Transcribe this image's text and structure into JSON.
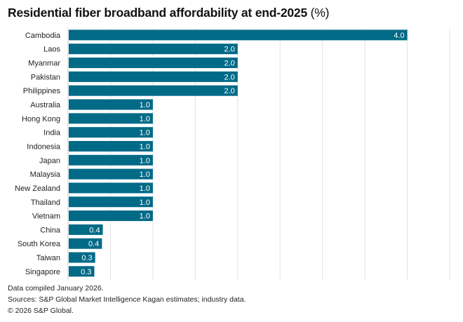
{
  "chart_data": {
    "type": "bar",
    "orientation": "horizontal",
    "title": "Residential fiber broadband affordability at end-2025",
    "title_unit": "(%)",
    "categories": [
      "Cambodia",
      "Laos",
      "Myanmar",
      "Pakistan",
      "Philippines",
      "Australia",
      "Hong Kong",
      "India",
      "Indonesia",
      "Japan",
      "Malaysia",
      "New Zealand",
      "Thailand",
      "Vietnam",
      "China",
      "South Korea",
      "Taiwan",
      "Singapore"
    ],
    "values": [
      4.0,
      2.0,
      2.0,
      2.0,
      2.0,
      1.0,
      1.0,
      1.0,
      1.0,
      1.0,
      1.0,
      1.0,
      1.0,
      1.0,
      0.41,
      0.4,
      0.32,
      0.31
    ],
    "data_labels": [
      "4.0",
      "2.0",
      "2.0",
      "2.0",
      "2.0",
      "1.0",
      "1.0",
      "1.0",
      "1.0",
      "1.0",
      "1.0",
      "1.0",
      "1.0",
      "1.0",
      "0.4",
      "0.4",
      "0.3",
      "0.3"
    ],
    "xlim": [
      0,
      4.5
    ],
    "grid": true,
    "grid_step": 0.5,
    "bar_color": "#006a87",
    "label_color": "#ffffff"
  },
  "footer": {
    "note": "Data compiled January 2026.",
    "sources": "Sources: S&P Global Market Intelligence Kagan estimates; industry data.",
    "copyright": "© 2026 S&P Global."
  }
}
